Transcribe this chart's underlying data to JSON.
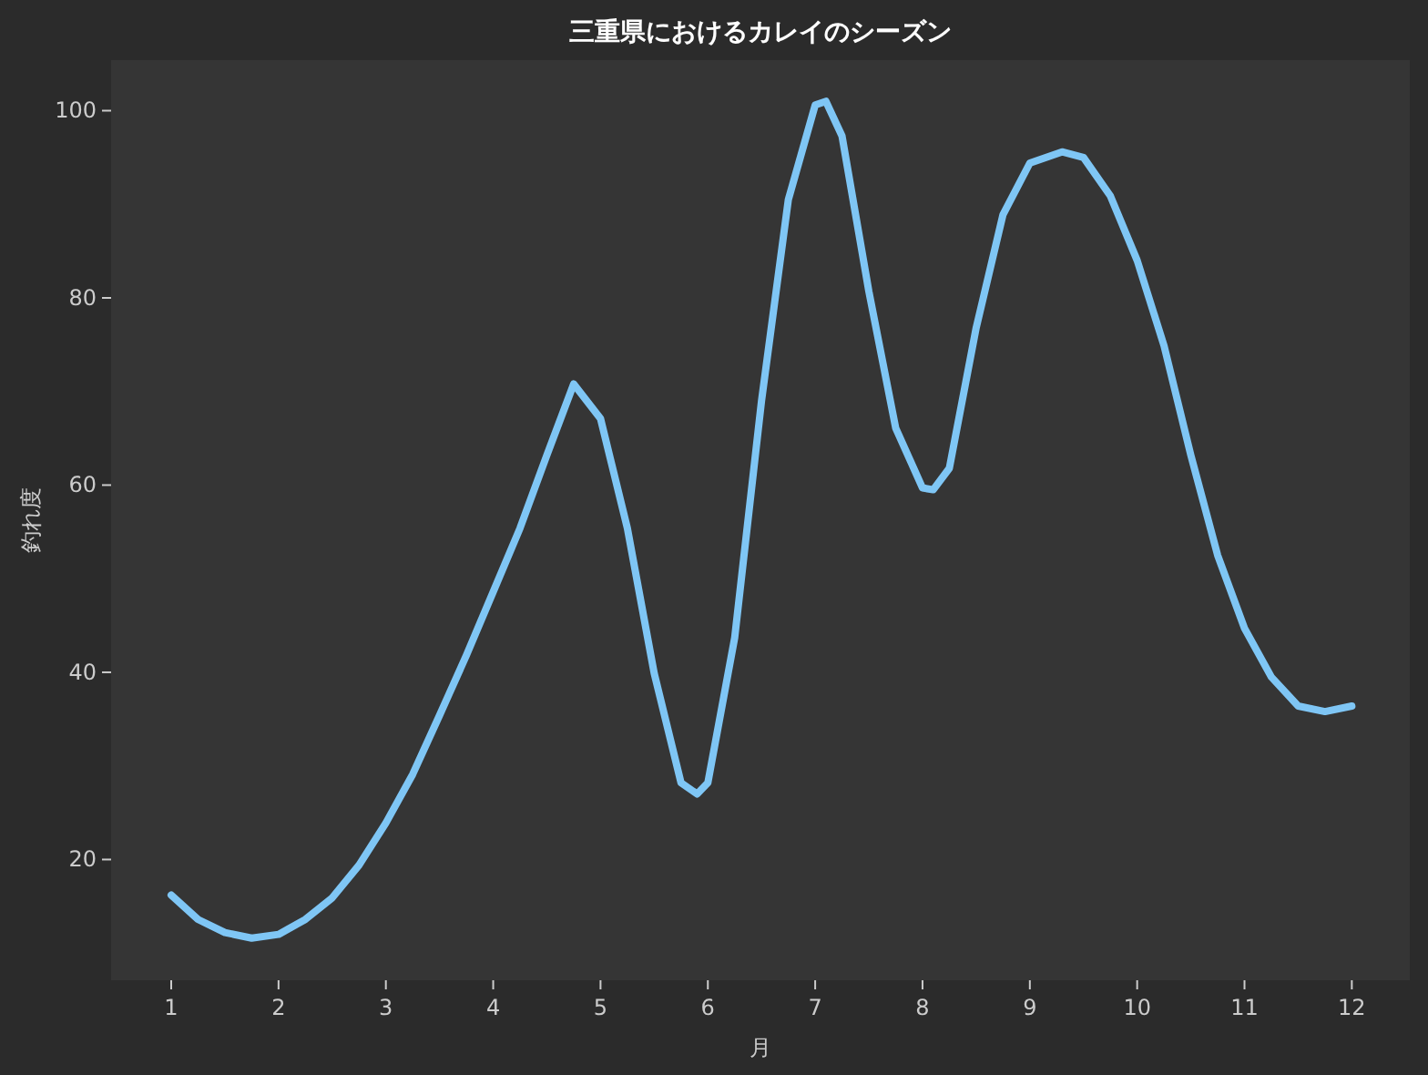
{
  "chart_data": {
    "type": "line",
    "title": "三重県におけるカレイのシーズン",
    "xlabel": "月",
    "ylabel": "釣れ度",
    "color": "#7fc6f5",
    "x": [
      1,
      1.25,
      1.5,
      1.75,
      2,
      2.25,
      2.5,
      2.75,
      3,
      3.25,
      3.5,
      3.75,
      4,
      4.25,
      4.5,
      4.75,
      5,
      5.25,
      5.5,
      5.75,
      5.9,
      6,
      6.25,
      6.5,
      6.75,
      7,
      7.1,
      7.25,
      7.5,
      7.75,
      8,
      8.1,
      8.25,
      8.5,
      8.75,
      9,
      9.3,
      9.5,
      9.75,
      10,
      10.25,
      10.5,
      10.75,
      11,
      11.25,
      11.5,
      11.75,
      12
    ],
    "values": [
      16.2,
      13.6,
      12.2,
      11.6,
      12,
      13.6,
      15.9,
      19.4,
      23.9,
      29.1,
      35.4,
      41.8,
      48.6,
      55.4,
      63.2,
      70.8,
      67.1,
      55.4,
      39.9,
      28.2,
      27,
      28.2,
      43.7,
      69,
      90.5,
      100.6,
      101,
      97.3,
      80.7,
      66.1,
      59.7,
      59.5,
      61.8,
      76.8,
      88.9,
      94.4,
      95.6,
      95,
      90.9,
      84,
      74.9,
      63.2,
      52.5,
      44.7,
      39.5,
      36.4,
      35.8,
      36.4
    ],
    "xlim": [
      0.44,
      12.54
    ],
    "ylim": [
      7.1,
      105.4
    ],
    "xticks": [
      1,
      2,
      3,
      4,
      5,
      6,
      7,
      8,
      9,
      10,
      11,
      12
    ],
    "yticks": [
      20,
      40,
      60,
      80,
      100
    ]
  }
}
